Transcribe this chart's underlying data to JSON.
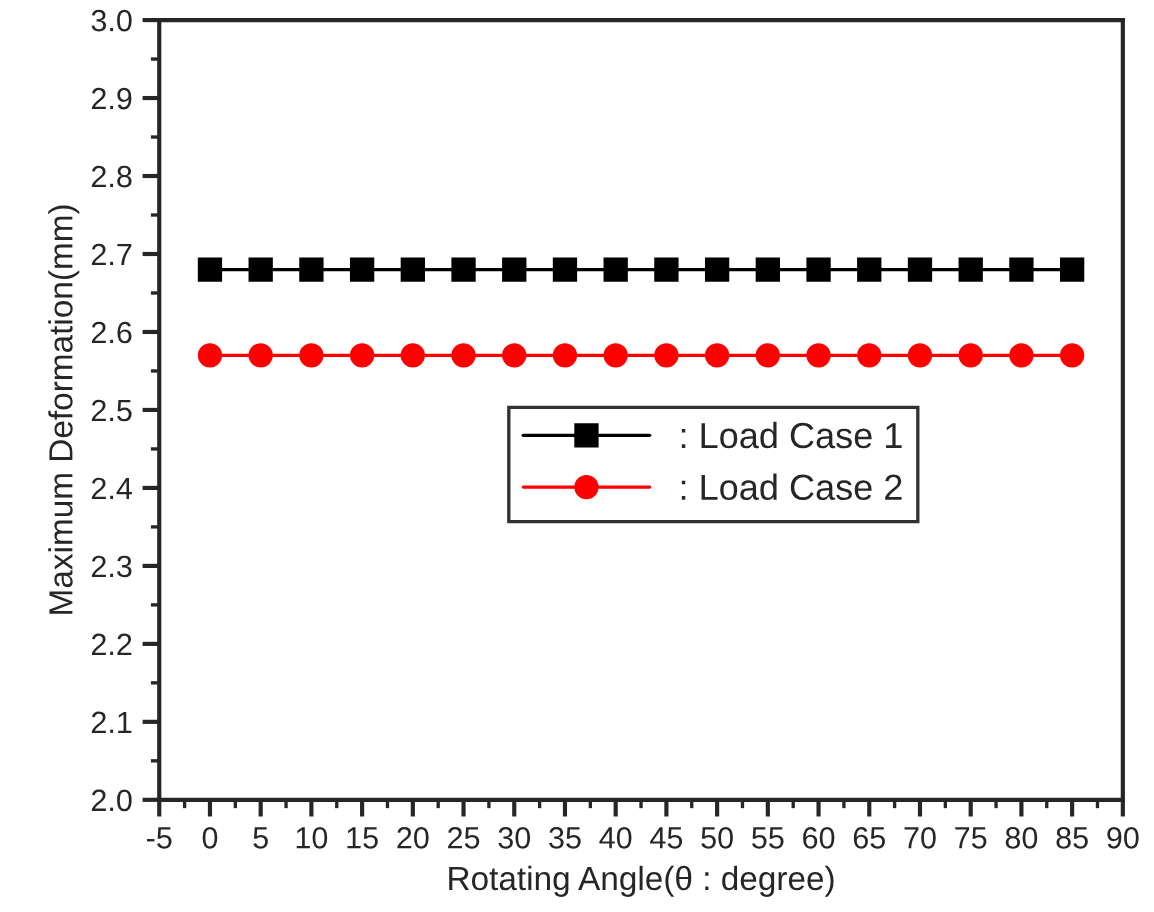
{
  "chart_data": {
    "type": "line",
    "xlabel": "Rotating Angle(θ : degree)",
    "ylabel": "Maximum Deformation(mm)",
    "x": [
      0,
      5,
      10,
      15,
      20,
      25,
      30,
      35,
      40,
      45,
      50,
      55,
      60,
      65,
      70,
      75,
      80,
      85
    ],
    "series": [
      {
        "name": ": Load Case 1",
        "color": "#000000",
        "marker": "square",
        "values": [
          2.68,
          2.68,
          2.68,
          2.68,
          2.68,
          2.68,
          2.68,
          2.68,
          2.68,
          2.68,
          2.68,
          2.68,
          2.68,
          2.68,
          2.68,
          2.68,
          2.68,
          2.68
        ]
      },
      {
        "name": ": Load Case 2",
        "color": "#ff0000",
        "marker": "circle",
        "values": [
          2.57,
          2.57,
          2.57,
          2.57,
          2.57,
          2.57,
          2.57,
          2.57,
          2.57,
          2.57,
          2.57,
          2.57,
          2.57,
          2.57,
          2.57,
          2.57,
          2.57,
          2.57
        ]
      }
    ],
    "xlim": [
      -5,
      90
    ],
    "xticks": [
      -5,
      0,
      5,
      10,
      15,
      20,
      25,
      30,
      35,
      40,
      45,
      50,
      55,
      60,
      65,
      70,
      75,
      80,
      85,
      90
    ],
    "ylim": [
      2.0,
      3.0
    ],
    "yticks": [
      {
        "value": 2.0,
        "label": "2.0"
      },
      2.1,
      2.2,
      2.3,
      2.4,
      2.5,
      2.6,
      2.7,
      2.8,
      2.9,
      {
        "value": 3.0,
        "label": "3.0"
      }
    ],
    "grid": false,
    "legend": "center",
    "line_style": "solid"
  }
}
